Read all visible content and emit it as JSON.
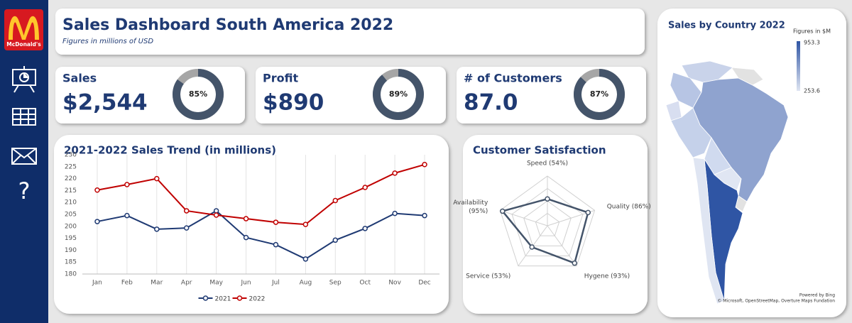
{
  "header": {
    "title": "Sales Dashboard South America 2022",
    "subtitle": "Figures in millions of USD"
  },
  "sidebar": {
    "logo": "McDonald's",
    "help": "?"
  },
  "chart_data": [
    {
      "type": "donut",
      "title": "Sales",
      "kpi": "$2,544",
      "values": [
        85
      ],
      "value_labels": [
        "85%"
      ],
      "color": "#44546a",
      "rest_color": "#a6a6a6"
    },
    {
      "type": "donut",
      "title": "Profit",
      "kpi": "$890",
      "values": [
        89
      ],
      "value_labels": [
        "89%"
      ],
      "color": "#44546a",
      "rest_color": "#a6a6a6"
    },
    {
      "type": "donut",
      "title": "# of Customers",
      "kpi": "87.0",
      "values": [
        87
      ],
      "value_labels": [
        "87%"
      ],
      "color": "#44546a",
      "rest_color": "#a6a6a6"
    },
    {
      "type": "line",
      "title": "2021-2022 Sales Trend (in millions)",
      "categories": [
        "Jan",
        "Feb",
        "Mar",
        "Apr",
        "May",
        "Jun",
        "Jul",
        "Aug",
        "Sep",
        "Oct",
        "Nov",
        "Dec"
      ],
      "series": [
        {
          "name": "2021",
          "color": "#1f3a73",
          "values": [
            202,
            204.5,
            198.8,
            199.3,
            206.5,
            195.3,
            192.3,
            186.3,
            194.2,
            199.1,
            205.4,
            204.5
          ]
        },
        {
          "name": "2022",
          "color": "#c00000",
          "values": [
            215.2,
            217.5,
            220,
            206.5,
            204.7,
            203.2,
            201.7,
            200.8,
            210.8,
            216.3,
            222.3,
            225.9
          ]
        }
      ],
      "ylim": [
        180,
        230
      ],
      "yticks": [
        180,
        185,
        190,
        195,
        200,
        205,
        210,
        215,
        220,
        225,
        230
      ],
      "grid": "x",
      "legend": "bottom"
    },
    {
      "type": "radar",
      "title": "Customer Satisfaction",
      "categories": [
        "Speed (54%)",
        "Quality (86%)",
        "Hygene (93%)",
        "Service (53%)",
        "Availability (95%)"
      ],
      "values": [
        54,
        86,
        93,
        53,
        95
      ],
      "rlim": [
        0,
        100
      ],
      "rticks": [
        25,
        50,
        75,
        100
      ],
      "color": "#44546a"
    },
    {
      "type": "map",
      "title": "Sales by Country 2022",
      "legend_title": "Figures in $M",
      "legend_range": [
        253.6,
        953.3
      ],
      "colors": [
        "#dfe5f2",
        "#2f55a4"
      ],
      "credit": "Powered by Bing",
      "attribution": "© Microsoft, OpenStreetMap, Overture Maps Fundation"
    }
  ]
}
